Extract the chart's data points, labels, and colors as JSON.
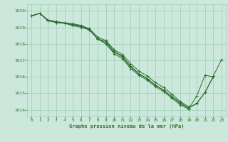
{
  "title": "Graphe pression niveau de la mer (hPa)",
  "bg_color": "#cce8dc",
  "grid_color": "#99ccb3",
  "line_color": "#2d6e2d",
  "marker_color": "#2d6e2d",
  "xlim": [
    -0.5,
    23.5
  ],
  "ylim": [
    1013.6,
    1020.4
  ],
  "yticks": [
    1014,
    1015,
    1016,
    1017,
    1018,
    1019,
    1020
  ],
  "xticks": [
    0,
    1,
    2,
    3,
    4,
    5,
    6,
    7,
    8,
    9,
    10,
    11,
    12,
    13,
    14,
    15,
    16,
    17,
    18,
    19,
    20,
    21,
    22,
    23
  ],
  "series": [
    [
      1019.7,
      1019.85,
      1019.4,
      1019.3,
      1019.25,
      1019.1,
      1019.0,
      1018.85,
      1018.3,
      1018.15,
      1017.55,
      1017.25,
      1016.65,
      1016.2,
      1015.9,
      1015.5,
      1015.2,
      1014.8,
      1014.45,
      1014.1,
      1014.4,
      1015.05,
      1016.05,
      1017.05
    ],
    [
      1019.7,
      1019.85,
      1019.4,
      1019.3,
      1019.25,
      1019.15,
      1019.05,
      1018.85,
      1018.3,
      1018.0,
      1017.4,
      1017.1,
      1016.5,
      1016.1,
      1015.8,
      1015.4,
      1015.1,
      1014.7,
      1014.3,
      1014.05,
      1014.85,
      1016.1,
      1016.0,
      null
    ],
    [
      1019.7,
      1019.85,
      1019.45,
      1019.35,
      1019.28,
      1019.22,
      1019.12,
      1018.92,
      1018.42,
      1018.2,
      1017.65,
      1017.35,
      1016.8,
      1016.35,
      1016.05,
      1015.65,
      1015.35,
      1014.95,
      1014.5,
      1014.2,
      null,
      null,
      null,
      null
    ],
    [
      1019.7,
      1019.85,
      1019.43,
      1019.32,
      1019.26,
      1019.18,
      1019.08,
      1018.88,
      1018.32,
      1018.05,
      1017.5,
      1017.2,
      1016.58,
      1016.18,
      1015.88,
      1015.48,
      1015.18,
      1014.78,
      1014.38,
      1014.12,
      1014.38,
      1015.08,
      1016.0,
      null
    ]
  ]
}
